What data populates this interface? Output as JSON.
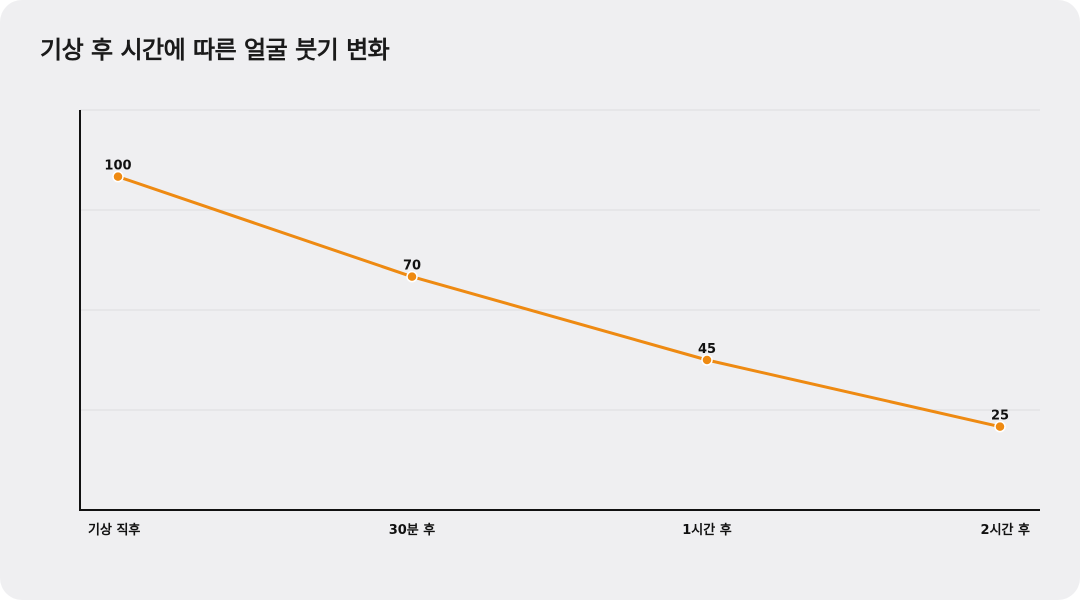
{
  "title": "기상 후 시간에 따른 얼굴 붓기 변화",
  "chart_data": {
    "type": "line",
    "title": "기상 후 시간에 따른 얼굴 붓기 변화",
    "categories": [
      "기상 직후",
      "30분 후",
      "1시간 후",
      "2시간 후"
    ],
    "series": [
      {
        "values": [
          100,
          70,
          45,
          25
        ]
      }
    ],
    "ylim": [
      0,
      120
    ],
    "xlabel": "",
    "ylabel": "",
    "grid": true,
    "y_tick_labels_shown": false,
    "line_color": "#ee8a12",
    "marker_color": "#ee8a12",
    "grid_color": "#dcdcdf",
    "axis_color": "#111111"
  }
}
